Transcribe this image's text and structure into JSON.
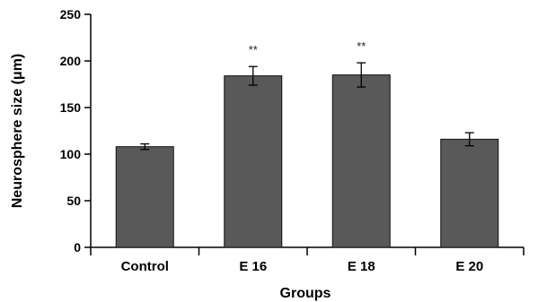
{
  "chart_data": {
    "type": "bar",
    "title": "",
    "xlabel": "Groups",
    "ylabel": "Neurosphere  size (μm)",
    "ylim": [
      0,
      250
    ],
    "yticks": [
      "0",
      "50",
      "100",
      "150",
      "200",
      "250"
    ],
    "categories": [
      "Control",
      "E 16",
      "E 18",
      "E 20"
    ],
    "values": [
      108,
      184,
      185,
      116
    ],
    "errors": [
      3,
      10,
      13,
      7
    ],
    "annotations": [
      "",
      "**",
      "**",
      ""
    ],
    "grid": false,
    "legend": "none",
    "colors": {
      "bar": "#595959",
      "axis": "#000000"
    }
  }
}
